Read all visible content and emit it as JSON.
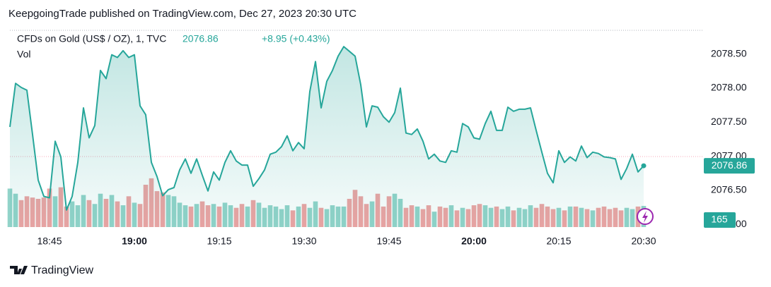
{
  "header": {
    "publisher": "KeepgoingTrade published on TradingView.com, Dec 27, 2023 20:30 UTC"
  },
  "chart_data": {
    "type": "line",
    "title": "CFDs on Gold (US$ / OZ), 1, TVC",
    "change_label": "+8.95 (+0.43%)",
    "categories": [
      null,
      null,
      null,
      null,
      null,
      null,
      null,
      "18:45",
      null,
      null,
      null,
      null,
      null,
      null,
      null,
      null,
      null,
      null,
      null,
      null,
      null,
      null,
      "19:00",
      null,
      null,
      null,
      null,
      null,
      null,
      null,
      null,
      null,
      null,
      null,
      null,
      null,
      null,
      "19:15",
      null,
      null,
      null,
      null,
      null,
      null,
      null,
      null,
      null,
      null,
      null,
      null,
      null,
      null,
      "19:30",
      null,
      null,
      null,
      null,
      null,
      null,
      null,
      null,
      null,
      null,
      null,
      null,
      null,
      null,
      "19:45",
      null,
      null,
      null,
      null,
      null,
      null,
      null,
      null,
      null,
      null,
      null,
      null,
      null,
      null,
      "20:00",
      null,
      null,
      null,
      null,
      null,
      null,
      null,
      null,
      null,
      null,
      null,
      null,
      null,
      null,
      "20:15",
      null,
      null,
      null,
      null,
      null,
      null,
      null,
      null,
      null,
      null,
      null,
      null,
      null,
      null,
      "20:30"
    ],
    "series": [
      {
        "color": "#26a69a",
        "values": [
          2077.43,
          2078.07,
          2078.01,
          2077.97,
          2077.32,
          2076.65,
          2076.41,
          2076.39,
          2077.22,
          2076.99,
          2076.21,
          2076.41,
          2076.91,
          2077.71,
          2077.27,
          2077.45,
          2078.26,
          2078.14,
          2078.49,
          2078.45,
          2078.55,
          2078.45,
          2078.49,
          2077.74,
          2077.61,
          2076.91,
          2076.7,
          2076.42,
          2076.51,
          2076.54,
          2076.8,
          2076.96,
          2076.75,
          2076.96,
          2076.72,
          2076.49,
          2076.77,
          2076.65,
          2076.91,
          2077.08,
          2076.93,
          2076.87,
          2076.87,
          2076.56,
          2076.67,
          2076.8,
          2077.03,
          2077.06,
          2077.14,
          2077.3,
          2077.08,
          2077.2,
          2077.11,
          2077.95,
          2078.39,
          2077.71,
          2078.1,
          2078.26,
          2078.47,
          2078.61,
          2078.54,
          2078.47,
          2078.05,
          2077.43,
          2077.74,
          2077.72,
          2077.58,
          2077.5,
          2077.64,
          2078.0,
          2077.34,
          2077.32,
          2077.4,
          2077.22,
          2076.96,
          2077.03,
          2076.93,
          2076.91,
          2077.08,
          2077.06,
          2077.48,
          2077.43,
          2077.27,
          2077.25,
          2077.48,
          2077.66,
          2077.38,
          2077.38,
          2077.72,
          2077.66,
          2077.69,
          2077.69,
          2077.71,
          2077.38,
          2077.06,
          2076.75,
          2076.61,
          2077.08,
          2076.91,
          2076.99,
          2076.93,
          2077.15,
          2076.98,
          2077.06,
          2077.04,
          2076.99,
          2076.98,
          2076.96,
          2076.66,
          2076.82,
          2077.03,
          2076.77,
          2076.86
        ]
      }
    ],
    "ylim": [
      2075.96,
      2078.88
    ],
    "yticks": [
      {
        "value": 2076,
        "label": "2076.00"
      },
      {
        "value": 2076.5,
        "label": "2076.50"
      },
      {
        "value": 2077,
        "label": "2077.00"
      },
      {
        "value": 2077.5,
        "label": "2077.50"
      },
      {
        "value": 2078,
        "label": "2078.00"
      },
      {
        "value": 2078.5,
        "label": "2078.50"
      }
    ],
    "volume": {
      "name": "Vol",
      "up_color": "#92d3c9",
      "down_color": "#eea3a3",
      "ylim": [
        0,
        1550
      ],
      "values": [
        300,
        260,
        210,
        240,
        230,
        220,
        230,
        300,
        240,
        310,
        160,
        200,
        170,
        250,
        210,
        180,
        260,
        220,
        250,
        200,
        170,
        240,
        190,
        180,
        330,
        380,
        280,
        270,
        250,
        240,
        190,
        170,
        160,
        180,
        200,
        170,
        180,
        160,
        190,
        170,
        150,
        180,
        160,
        210,
        190,
        150,
        170,
        160,
        140,
        170,
        130,
        160,
        180,
        150,
        200,
        150,
        140,
        170,
        160,
        160,
        220,
        290,
        240,
        180,
        200,
        260,
        160,
        240,
        260,
        220,
        150,
        170,
        160,
        140,
        170,
        120,
        160,
        150,
        170,
        130,
        150,
        140,
        170,
        180,
        170,
        150,
        160,
        140,
        160,
        130,
        150,
        140,
        170,
        150,
        180,
        160,
        140,
        150,
        130,
        160,
        160,
        150,
        140,
        130,
        150,
        160,
        140,
        150,
        130,
        150,
        140,
        160,
        165
      ]
    }
  },
  "footer": {
    "brand": "TradingView"
  }
}
